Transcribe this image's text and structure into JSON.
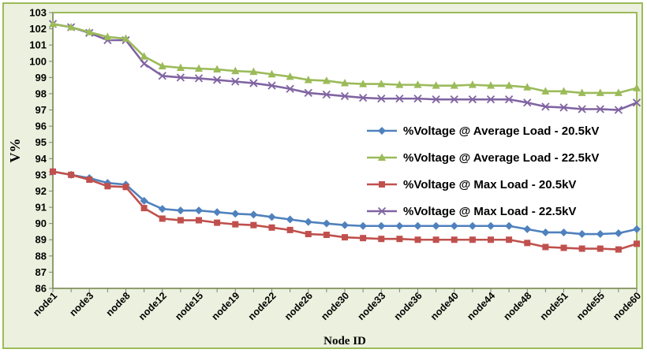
{
  "chart_data": {
    "type": "line",
    "xlabel": "Node ID",
    "ylabel": "V%",
    "ylim": [
      86,
      103
    ],
    "yticks": [
      86,
      87,
      88,
      89,
      90,
      91,
      92,
      93,
      94,
      95,
      96,
      97,
      98,
      99,
      100,
      101,
      102,
      103
    ],
    "x_tick_labels": [
      "node1",
      "node3",
      "node8",
      "node12",
      "node15",
      "node19",
      "node22",
      "node26",
      "node30",
      "node33",
      "node36",
      "node40",
      "node44",
      "node48",
      "node51",
      "node55",
      "node60"
    ],
    "grid": false,
    "legend_position": "right",
    "colors": {
      "plot_background": "#ffffff",
      "chart_background": "#ebf1de",
      "chart_border": "#9bbb59",
      "plot_border": "#9bbb59"
    },
    "series": [
      {
        "name": "%Voltage @ Average Load - 20.5kV",
        "color": "#4f81bd",
        "marker": "diamond",
        "values": [
          93.2,
          93.0,
          92.8,
          92.5,
          92.4,
          91.4,
          90.9,
          90.8,
          90.8,
          90.7,
          90.6,
          90.55,
          90.4,
          90.25,
          90.1,
          90.0,
          89.9,
          89.85,
          89.85,
          89.85,
          89.85,
          89.85,
          89.85,
          89.85,
          89.85,
          89.85,
          89.65,
          89.45,
          89.45,
          89.35,
          89.35,
          89.4,
          89.65
        ]
      },
      {
        "name": "%Voltage @ Average Load - 22.5kV",
        "color": "#9bbb59",
        "marker": "triangle",
        "values": [
          102.3,
          102.1,
          101.8,
          101.5,
          101.4,
          100.3,
          99.7,
          99.6,
          99.55,
          99.5,
          99.4,
          99.35,
          99.2,
          99.05,
          98.85,
          98.8,
          98.65,
          98.6,
          98.6,
          98.55,
          98.55,
          98.5,
          98.5,
          98.55,
          98.5,
          98.5,
          98.4,
          98.15,
          98.15,
          98.05,
          98.05,
          98.05,
          98.35
        ]
      },
      {
        "name": "%Voltage @ Max Load - 20.5kV",
        "color": "#c0504d",
        "marker": "square",
        "values": [
          93.2,
          93.0,
          92.7,
          92.3,
          92.25,
          90.95,
          90.3,
          90.2,
          90.2,
          90.05,
          89.95,
          89.9,
          89.75,
          89.6,
          89.35,
          89.3,
          89.15,
          89.1,
          89.05,
          89.05,
          89.0,
          89.0,
          89.0,
          89.0,
          89.0,
          89.0,
          88.8,
          88.55,
          88.5,
          88.45,
          88.45,
          88.4,
          88.75
        ]
      },
      {
        "name": "%Voltage @ Max Load - 22.5kV",
        "color": "#8064a2",
        "marker": "x",
        "values": [
          102.3,
          102.1,
          101.75,
          101.3,
          101.3,
          99.85,
          99.1,
          99.0,
          98.95,
          98.85,
          98.75,
          98.65,
          98.5,
          98.3,
          98.05,
          97.95,
          97.85,
          97.75,
          97.7,
          97.7,
          97.7,
          97.65,
          97.65,
          97.65,
          97.65,
          97.65,
          97.45,
          97.2,
          97.15,
          97.05,
          97.05,
          97.0,
          97.45
        ]
      }
    ]
  }
}
